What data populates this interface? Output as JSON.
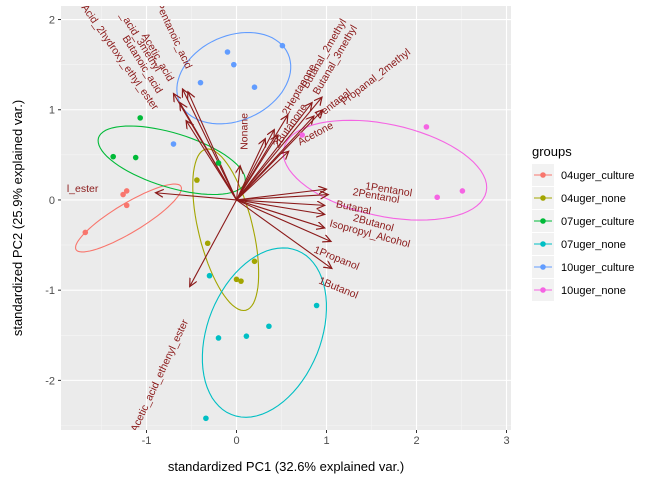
{
  "chart_data": {
    "type": "scatter",
    "xlabel": "standardized PC1 (32.6% explained var.)",
    "ylabel": "standardized PC2 (25.9% explained var.)",
    "xlim": [
      -1.95,
      3.05
    ],
    "ylim": [
      -2.55,
      2.15
    ],
    "xticks": [
      "-1",
      "0",
      "1",
      "2",
      "3"
    ],
    "xtick_values": [
      -1,
      0,
      1,
      2,
      3
    ],
    "yticks": [
      "-2",
      "-1",
      "0",
      "1",
      "2"
    ],
    "ytick_values": [
      -2,
      -1,
      0,
      1,
      2
    ],
    "grid": true,
    "legend_title": "groups",
    "legend_position": "right",
    "arrow_color": "#8B1A1A",
    "series": [
      {
        "name": "04uger_culture",
        "color": "#F8766D",
        "points": [
          [
            -1.68,
            -0.36
          ],
          [
            -1.22,
            0.1
          ],
          [
            -1.26,
            0.06
          ],
          [
            -1.22,
            -0.06
          ]
        ],
        "ellipse": {
          "cx": -1.2,
          "cy": -0.2,
          "rx": 0.68,
          "ry": 0.16,
          "angle": 31
        }
      },
      {
        "name": "04uger_none",
        "color": "#A3A500",
        "points": [
          [
            -0.44,
            0.22
          ],
          [
            -0.32,
            -0.48
          ],
          [
            0.2,
            -0.68
          ],
          [
            0.0,
            -0.88
          ],
          [
            0.05,
            -0.9
          ]
        ],
        "ellipse": {
          "cx": -0.12,
          "cy": -0.33,
          "rx": 0.3,
          "ry": 0.92,
          "angle": 14
        }
      },
      {
        "name": "07uger_culture",
        "color": "#00BA38",
        "points": [
          [
            -1.07,
            0.91
          ],
          [
            -1.12,
            0.47
          ],
          [
            -1.37,
            0.48
          ],
          [
            -0.2,
            0.41
          ]
        ],
        "ellipse": {
          "cx": -0.72,
          "cy": 0.44,
          "rx": 0.85,
          "ry": 0.3,
          "angle": -17
        }
      },
      {
        "name": "07uger_none",
        "color": "#00BFC4",
        "points": [
          [
            -0.34,
            -2.42
          ],
          [
            -0.2,
            -1.53
          ],
          [
            0.11,
            -1.51
          ],
          [
            0.36,
            -1.4
          ],
          [
            0.89,
            -1.17
          ],
          [
            -0.3,
            -0.84
          ]
        ],
        "ellipse": {
          "cx": 0.31,
          "cy": -1.47,
          "rx": 0.63,
          "ry": 0.98,
          "angle": -22
        }
      },
      {
        "name": "10uger_culture",
        "color": "#619CFF",
        "points": [
          [
            -0.1,
            1.64
          ],
          [
            -0.03,
            1.5
          ],
          [
            -0.4,
            1.3
          ],
          [
            0.51,
            1.71
          ],
          [
            0.2,
            1.25
          ],
          [
            -0.7,
            0.62
          ]
        ],
        "ellipse": {
          "cx": -0.03,
          "cy": 1.35,
          "rx": 0.66,
          "ry": 0.47,
          "angle": 24
        }
      },
      {
        "name": "10uger_none",
        "color": "#F564E3",
        "points": [
          [
            2.11,
            0.81
          ],
          [
            2.51,
            0.1
          ],
          [
            2.23,
            0.03
          ],
          [
            0.73,
            0.72
          ]
        ],
        "ellipse": {
          "cx": 1.65,
          "cy": 0.33,
          "rx": 1.15,
          "ry": 0.51,
          "angle": -12
        }
      }
    ],
    "loadings": [
      {
        "label": "1Butanol",
        "x": 1.06,
        "y": -0.76,
        "lx": 1.13,
        "ly": -0.98,
        "angle": 22
      },
      {
        "label": "1Propanol",
        "x": 1.05,
        "y": -0.46,
        "lx": 1.11,
        "ly": -0.65,
        "angle": 22
      },
      {
        "label": "Isopropyl_Alcohol",
        "x": 0.98,
        "y": -0.31,
        "lx": 1.48,
        "ly": -0.38,
        "angle": 15
      },
      {
        "label": "2Butanol",
        "x": 0.98,
        "y": -0.16,
        "lx": 1.52,
        "ly": -0.26,
        "angle": 15
      },
      {
        "label": "Butanal",
        "x": 0.98,
        "y": -0.06,
        "lx": 1.3,
        "ly": -0.09,
        "angle": 12
      },
      {
        "label": "2Pentanol",
        "x": 1.02,
        "y": 0.06,
        "lx": 1.55,
        "ly": 0.04,
        "angle": 10
      },
      {
        "label": "1Pentanol",
        "x": 1.0,
        "y": 0.12,
        "lx": 1.69,
        "ly": 0.11,
        "angle": 9
      },
      {
        "label": "Acetone",
        "x": 0.58,
        "y": 0.54,
        "lx": 0.88,
        "ly": 0.73,
        "angle": -28
      },
      {
        "label": "Pentanal",
        "x": 0.86,
        "y": 0.93,
        "lx": 1.08,
        "ly": 1.06,
        "angle": -38
      },
      {
        "label": "Propanal_2methyl",
        "x": 0.96,
        "y": 1.0,
        "lx": 1.55,
        "ly": 1.36,
        "angle": -38
      },
      {
        "label": "2Butanone",
        "x": 0.46,
        "y": 0.72,
        "lx": 0.6,
        "ly": 0.82,
        "angle": -55
      },
      {
        "label": "2Heptanone",
        "x": 0.57,
        "y": 0.94,
        "lx": 0.7,
        "ly": 1.22,
        "angle": -60
      },
      {
        "label": "Butanal_2methyl",
        "x": 0.84,
        "y": 1.08,
        "lx": 0.98,
        "ly": 1.62,
        "angle": -60
      },
      {
        "label": "Butanal_3methyl",
        "x": 0.95,
        "y": 1.14,
        "lx": 1.1,
        "ly": 1.55,
        "angle": -60
      },
      {
        "label": "Nonane",
        "x": 0.04,
        "y": 0.38,
        "lx": 0.09,
        "ly": 0.76,
        "angle": -90
      },
      {
        "label": "Pentanoic_acid",
        "x": -0.54,
        "y": 1.2,
        "lx": -0.7,
        "ly": 1.82,
        "angle": 65
      },
      {
        "label": "Acetic_acid",
        "x": -0.6,
        "y": 1.23,
        "lx": -0.88,
        "ly": 1.58,
        "angle": 60
      },
      {
        "label": "Butanoic_acid",
        "x": -0.7,
        "y": 1.18,
        "lx": -1.05,
        "ly": 1.5,
        "angle": 58
      },
      {
        "label": "Acid_2hydroxy_ethyl_ester",
        "x": -0.63,
        "y": 1.08,
        "lx": -1.3,
        "ly": 1.58,
        "angle": 55
      },
      {
        "label": "_acid_3methyl",
        "x": -0.56,
        "y": 0.88,
        "lx": -1.07,
        "ly": 1.75,
        "angle": 58
      },
      {
        "label": "l_ester",
        "x": -0.9,
        "y": 0.08,
        "lx": -1.71,
        "ly": 0.12,
        "angle": 0
      },
      {
        "label": "Acetic_acid_ethenyl_ester",
        "x": -0.52,
        "y": -0.96,
        "lx": -0.85,
        "ly": -1.95,
        "angle": -65
      },
      {
        "label": "",
        "x": 0.32,
        "y": 0.68,
        "lx": 0.32,
        "ly": 0.68,
        "angle": 0
      },
      {
        "label": "",
        "x": 0.42,
        "y": 0.78,
        "lx": 0.42,
        "ly": 0.78,
        "angle": 0
      }
    ]
  }
}
